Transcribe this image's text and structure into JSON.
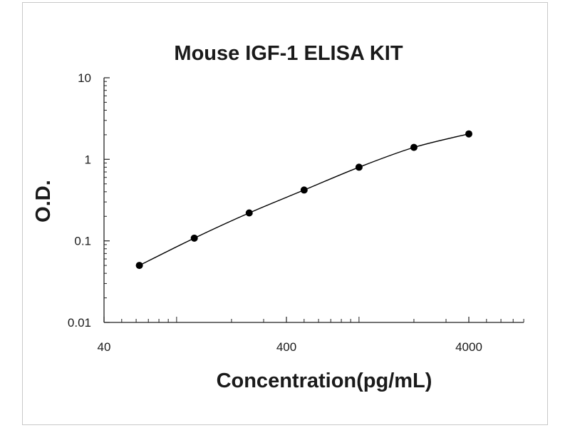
{
  "chart_data": {
    "type": "scatter",
    "title": "Mouse IGF-1 ELISA KIT",
    "xlabel": "Concentration(pg/mL)",
    "ylabel": "O.D.",
    "x_scale": "log",
    "y_scale": "log",
    "xlim": [
      40,
      8000
    ],
    "ylim": [
      0.01,
      10
    ],
    "x_ticks": [
      40,
      400,
      4000
    ],
    "x_tick_labels": [
      "40",
      "400",
      "4000"
    ],
    "y_ticks": [
      0.01,
      0.1,
      1,
      10
    ],
    "y_tick_labels": [
      "0.01",
      "0.1",
      "1",
      "10"
    ],
    "grid": false,
    "series": [
      {
        "x": [
          62.5,
          125,
          250,
          500,
          1000,
          2000,
          4000
        ],
        "y": [
          0.05,
          0.108,
          0.22,
          0.42,
          0.8,
          1.4,
          2.05
        ],
        "marker": "circle",
        "line": "smooth",
        "color": "#000000"
      }
    ]
  }
}
